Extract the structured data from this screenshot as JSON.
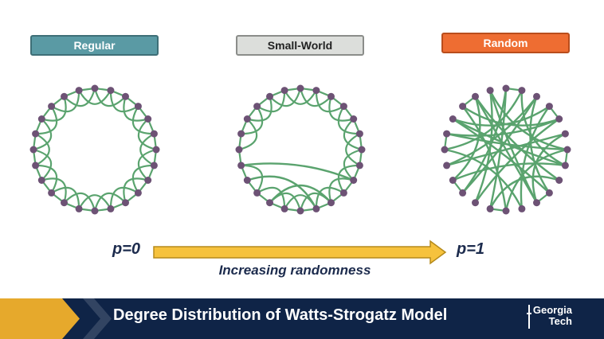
{
  "labels": {
    "regular": "Regular",
    "small_world": "Small-World",
    "random": "Random"
  },
  "axis": {
    "start": "p=0",
    "end": "p=1",
    "caption": "Increasing randomness"
  },
  "footer": {
    "title": "Degree Distribution of Watts-Strogatz Model",
    "logo_line1": "Georgia",
    "logo_line2": "Tech"
  },
  "colors": {
    "node": "#6d5275",
    "edge": "#5aa36e",
    "arrow": "#f6c23d",
    "footer_bg": "#0f2447",
    "chevron": "#e6a92c"
  },
  "networks": [
    {
      "name": "regular",
      "nodes": 24,
      "shortcuts": []
    },
    {
      "name": "small-world",
      "nodes": 24,
      "shortcuts": [
        [
          17,
          8
        ],
        [
          16,
          11
        ],
        [
          14,
          10
        ]
      ]
    },
    {
      "name": "random",
      "nodes": 24,
      "shortcuts": [
        [
          0,
          13
        ],
        [
          1,
          7
        ],
        [
          1,
          18
        ],
        [
          2,
          9
        ],
        [
          2,
          15
        ],
        [
          3,
          11
        ],
        [
          3,
          20
        ],
        [
          4,
          14
        ],
        [
          4,
          21
        ],
        [
          5,
          10
        ],
        [
          5,
          17
        ],
        [
          6,
          19
        ],
        [
          6,
          12
        ],
        [
          7,
          16
        ],
        [
          8,
          22
        ],
        [
          8,
          13
        ],
        [
          9,
          20
        ],
        [
          10,
          23
        ],
        [
          11,
          18
        ],
        [
          12,
          21
        ],
        [
          14,
          23
        ],
        [
          15,
          0
        ],
        [
          16,
          22
        ],
        [
          17,
          2
        ],
        [
          19,
          4
        ],
        [
          20,
          7
        ],
        [
          22,
          10
        ],
        [
          23,
          6
        ]
      ]
    }
  ]
}
